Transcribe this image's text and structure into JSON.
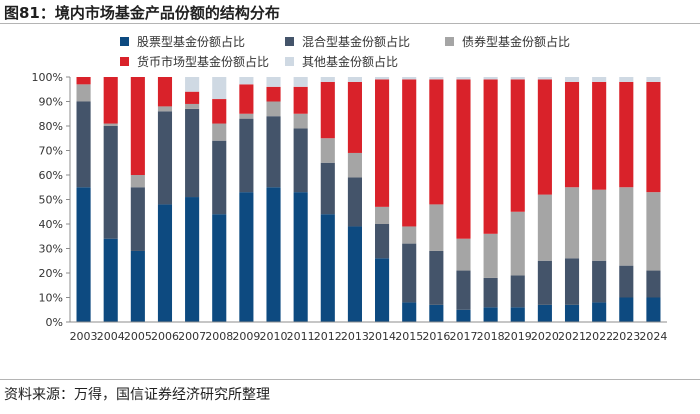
{
  "header": {
    "title": "图81：境内市场基金产品份额的结构分布"
  },
  "footer": {
    "source": "资料来源：万得，国信证券经济研究所整理"
  },
  "colors": {
    "stock": "#0d4a80",
    "mixed": "#44546a",
    "bond": "#a5a5a5",
    "money": "#d9222a",
    "other": "#cfd9e3"
  },
  "chart_data": {
    "type": "bar",
    "stacked": true,
    "title": "境内市场基金产品份额的结构分布",
    "ylim": [
      0,
      100
    ],
    "yticks": [
      "0%",
      "10%",
      "20%",
      "30%",
      "40%",
      "50%",
      "60%",
      "70%",
      "80%",
      "90%",
      "100%"
    ],
    "categories": [
      "2003",
      "2004",
      "2005",
      "2006",
      "2007",
      "2008",
      "2009",
      "2010",
      "2011",
      "2012",
      "2013",
      "2014",
      "2015",
      "2016",
      "2017",
      "2018",
      "2019",
      "2020",
      "2021",
      "2022",
      "2023",
      "2024"
    ],
    "series": [
      {
        "key": "stock",
        "name": "股票型基金份额占比",
        "values": [
          55,
          34,
          29,
          48,
          51,
          44,
          53,
          55,
          53,
          44,
          39,
          26,
          8,
          7,
          5,
          6,
          6,
          7,
          7,
          8,
          10,
          10
        ]
      },
      {
        "key": "mixed",
        "name": "混合型基金份额占比",
        "values": [
          35,
          46,
          26,
          38,
          36,
          30,
          30,
          29,
          26,
          21,
          20,
          14,
          24,
          22,
          16,
          12,
          13,
          18,
          19,
          17,
          13,
          11
        ]
      },
      {
        "key": "bond",
        "name": "债券型基金份额占比",
        "values": [
          7,
          1,
          5,
          2,
          2,
          7,
          2,
          6,
          6,
          10,
          10,
          7,
          7,
          19,
          13,
          18,
          26,
          27,
          29,
          29,
          32,
          32
        ]
      },
      {
        "key": "money",
        "name": "货币市场型基金份额占比",
        "values": [
          3,
          19,
          40,
          12,
          5,
          10,
          12,
          6,
          11,
          23,
          29,
          52,
          60,
          51,
          65,
          63,
          54,
          47,
          43,
          44,
          43,
          45
        ]
      },
      {
        "key": "other",
        "name": "其他基金份额占比",
        "values": [
          0,
          0,
          0,
          0,
          6,
          9,
          3,
          4,
          4,
          2,
          2,
          1,
          1,
          1,
          1,
          1,
          1,
          1,
          2,
          2,
          2,
          2
        ]
      }
    ]
  }
}
